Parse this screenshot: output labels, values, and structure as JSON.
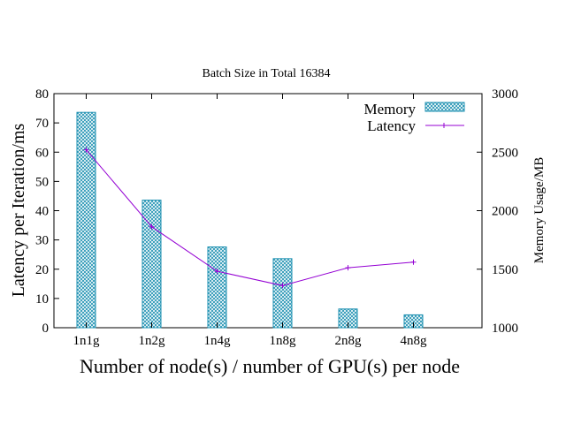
{
  "chart_data": {
    "type": "bar+line",
    "title": "Batch Size in Total 16384",
    "xlabel": "Number of node(s) / number of GPU(s) per node",
    "ylabel": "Latency per Iteration/ms",
    "y2label": "Memory Usage/MB",
    "categories": [
      "1n1g",
      "1n2g",
      "1n4g",
      "1n8g",
      "2n8g",
      "4n8g"
    ],
    "ylim": [
      0,
      80
    ],
    "y2lim": [
      1000,
      3000
    ],
    "yticks": [
      "0",
      "10",
      "20",
      "30",
      "40",
      "50",
      "60",
      "70",
      "80"
    ],
    "y2ticks": [
      "1000",
      "1500",
      "2000",
      "2500",
      "3000"
    ],
    "legend_position": "top-right",
    "grid": false,
    "series": [
      {
        "name": "Memory",
        "type": "bar",
        "axis": "y2",
        "color": "#1a8fb0",
        "values": [
          2840,
          2090,
          1690,
          1590,
          1160,
          1110
        ]
      },
      {
        "name": "Latency",
        "type": "line",
        "axis": "y",
        "color": "#9400d3",
        "values": [
          60.8,
          34.5,
          19.3,
          14.4,
          20.5,
          22.4
        ]
      }
    ]
  }
}
